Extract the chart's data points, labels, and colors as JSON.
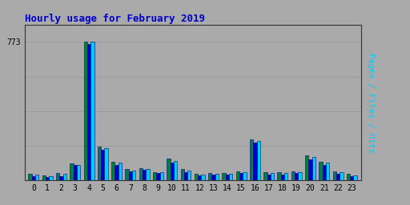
{
  "title": "Hourly usage for February 2019",
  "title_color": "#0000cc",
  "title_fontsize": 9,
  "background_color": "#aaaaaa",
  "hours": [
    0,
    1,
    2,
    3,
    4,
    5,
    6,
    7,
    8,
    9,
    10,
    11,
    12,
    13,
    14,
    15,
    16,
    17,
    18,
    19,
    20,
    21,
    22,
    23
  ],
  "pages": [
    38,
    28,
    42,
    95,
    773,
    190,
    105,
    62,
    70,
    48,
    120,
    62,
    38,
    42,
    42,
    52,
    230,
    45,
    45,
    52,
    140,
    105,
    50,
    35
  ],
  "files": [
    22,
    18,
    25,
    85,
    760,
    170,
    88,
    52,
    58,
    40,
    100,
    45,
    28,
    32,
    32,
    40,
    210,
    33,
    33,
    40,
    118,
    88,
    38,
    25
  ],
  "hits": [
    32,
    25,
    36,
    85,
    773,
    178,
    98,
    57,
    63,
    44,
    110,
    53,
    34,
    38,
    38,
    46,
    220,
    40,
    40,
    46,
    130,
    98,
    44,
    30
  ],
  "pages_color": "#008040",
  "files_color": "#0000cc",
  "hits_color": "#00ccff",
  "bar_edge_color": "#000080",
  "bar_edge_width": 0.4,
  "ytick_value": 773,
  "ylim_max": 870,
  "bar_width": 0.25,
  "grid_color": "#999999",
  "grid_linewidth": 0.6,
  "ylabel_pages_color": "#008040",
  "ylabel_files_color": "#0000cc",
  "ylabel_hits_color": "#00ccff",
  "tick_fontsize": 7,
  "outer_bg": "#aaaaaa",
  "plot_border_color": "#333333"
}
